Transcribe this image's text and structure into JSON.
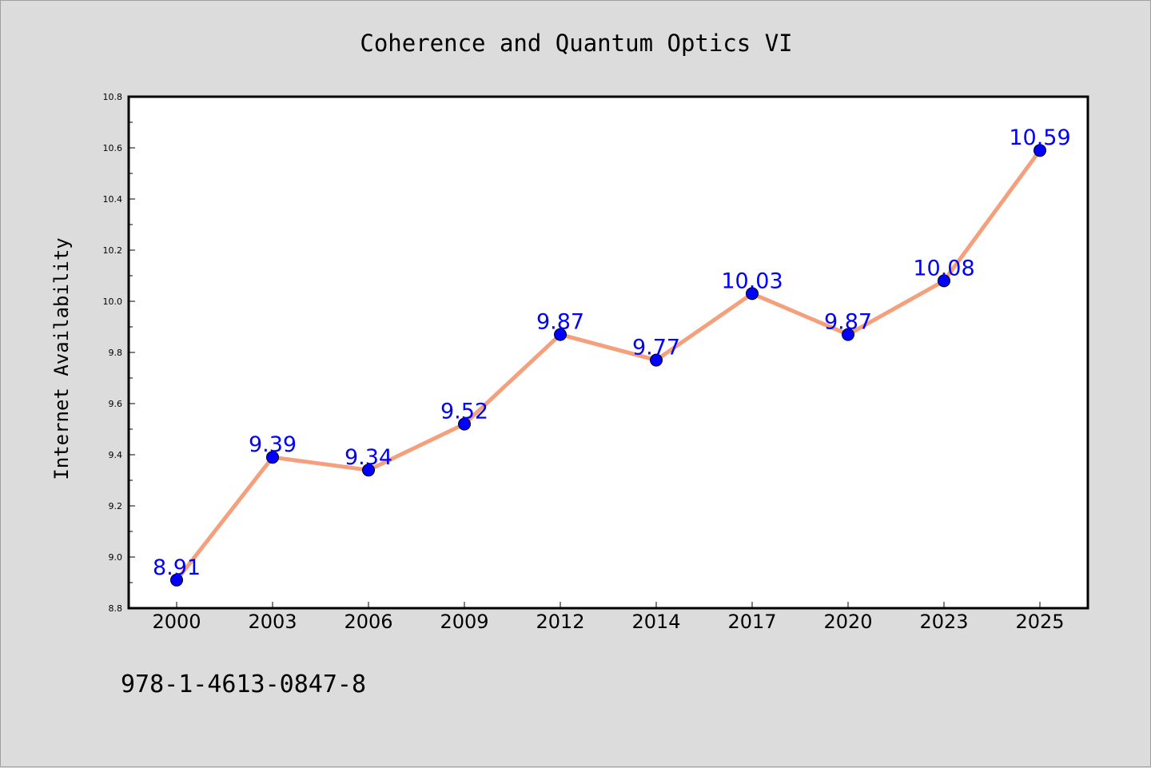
{
  "chart_data": {
    "type": "line",
    "title": "Coherence and Quantum Optics VI",
    "xlabel": "",
    "ylabel": "Internet Availability",
    "categories": [
      "2000",
      "2003",
      "2006",
      "2009",
      "2012",
      "2014",
      "2017",
      "2020",
      "2023",
      "2025"
    ],
    "series": [
      {
        "values": [
          8.91,
          9.39,
          9.34,
          9.52,
          9.87,
          9.77,
          10.03,
          9.87,
          10.08,
          10.59
        ],
        "line_color": "#f4a07c",
        "marker_color": "#0000ff"
      }
    ],
    "data_labels": [
      "8.91",
      "9.39",
      "9.34",
      "9.52",
      "9.87",
      "9.77",
      "10.03",
      "9.87",
      "10.08",
      "10.59"
    ],
    "ylim": [
      8.8,
      10.8
    ],
    "yticks": [
      "8.8",
      "9.0",
      "9.2",
      "9.4",
      "9.6",
      "9.8",
      "10.0",
      "10.2",
      "10.4",
      "10.6",
      "10.8"
    ],
    "grid": false,
    "legend": "none",
    "label_color": "#0000ff"
  },
  "footer": {
    "isbn": "978-1-4613-0847-8"
  },
  "colors": {
    "background": "#dcdcdc",
    "plot_background": "#ffffff",
    "axis": "#000000"
  }
}
